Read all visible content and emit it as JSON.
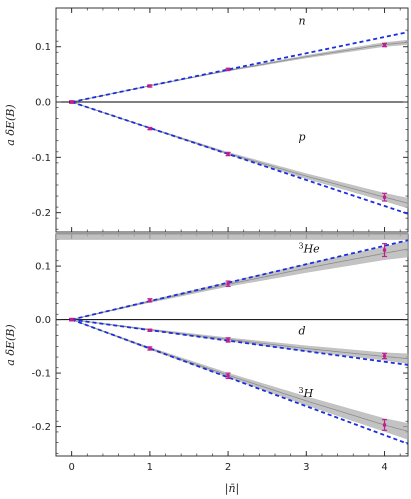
{
  "chart_data": [
    {
      "type": "line",
      "panel": "top",
      "xlim": [
        -0.2,
        4.3
      ],
      "ylim": [
        -0.235,
        0.17
      ],
      "yticks": [
        0.1,
        0.0,
        -0.1,
        -0.2
      ],
      "ytick_labels": [
        "0.1",
        "0.0",
        "-0.1",
        "-0.2"
      ],
      "xticks": [
        0,
        1,
        2,
        3,
        4
      ],
      "ylabel": "a δE(B)",
      "series": [
        {
          "name": "n",
          "label_pos": [
            2.9,
            0.14
          ],
          "color": "#1a2ee0",
          "linear_slope": 0.0294,
          "band_color": "#b4b4b4",
          "points": [
            {
              "x": 0,
              "y": 0.0,
              "err": 0.002
            },
            {
              "x": 1,
              "y": 0.029,
              "err": 0.002
            },
            {
              "x": 2,
              "y": 0.059,
              "err": 0.002
            },
            {
              "x": 4,
              "y": 0.103,
              "err": 0.003
            }
          ],
          "fit_curve": [
            [
              0,
              0
            ],
            [
              1,
              0.0294
            ],
            [
              2,
              0.057
            ],
            [
              3,
              0.082
            ],
            [
              4,
              0.104
            ],
            [
              4.3,
              0.108
            ]
          ],
          "band_halfwidth": [
            [
              0,
              0
            ],
            [
              2,
              0.001
            ],
            [
              4.3,
              0.004
            ]
          ]
        },
        {
          "name": "p",
          "label_pos": [
            2.9,
            -0.07
          ],
          "color": "#1a2ee0",
          "linear_slope": -0.047,
          "band_color": "#b4b4b4",
          "points": [
            {
              "x": 0,
              "y": 0.0,
              "err": 0.002
            },
            {
              "x": 1,
              "y": -0.048,
              "err": 0.002
            },
            {
              "x": 2,
              "y": -0.094,
              "err": 0.003
            },
            {
              "x": 4,
              "y": -0.172,
              "err": 0.007
            }
          ],
          "fit_curve": [
            [
              0,
              0
            ],
            [
              1,
              -0.047
            ],
            [
              2,
              -0.093
            ],
            [
              3,
              -0.134
            ],
            [
              4,
              -0.172
            ],
            [
              4.3,
              -0.183
            ]
          ],
          "band_halfwidth": [
            [
              0,
              0
            ],
            [
              2,
              0.002
            ],
            [
              4,
              0.007
            ],
            [
              4.3,
              0.009
            ]
          ]
        }
      ]
    },
    {
      "type": "line",
      "panel": "bottom",
      "xlim": [
        -0.2,
        4.3
      ],
      "ylim": [
        -0.255,
        0.16
      ],
      "yticks": [
        0.1,
        0.0,
        -0.1,
        -0.2
      ],
      "ytick_labels": [
        "0.1",
        "0.0",
        "-0.1",
        "-0.2"
      ],
      "xticks": [
        0,
        1,
        2,
        3,
        4
      ],
      "xtick_labels": [
        "0",
        "1",
        "2",
        "3",
        "4"
      ],
      "xlabel": "|n̄|",
      "ylabel": "a δE(B)",
      "series": [
        {
          "name": "3He",
          "label_pos": [
            2.9,
            0.125
          ],
          "color": "#1a2ee0",
          "linear_slope": 0.0345,
          "points": [
            {
              "x": 0,
              "y": 0.0,
              "err": 0.002
            },
            {
              "x": 1,
              "y": 0.036,
              "err": 0.003
            },
            {
              "x": 2,
              "y": 0.067,
              "err": 0.005
            },
            {
              "x": 4,
              "y": 0.13,
              "err": 0.012
            }
          ],
          "fit_curve": [
            [
              0,
              0
            ],
            [
              1,
              0.034
            ],
            [
              2,
              0.066
            ],
            [
              3,
              0.096
            ],
            [
              4,
              0.124
            ],
            [
              4.3,
              0.132
            ]
          ],
          "band_halfwidth": [
            [
              0,
              0
            ],
            [
              2,
              0.004
            ],
            [
              4,
              0.012
            ],
            [
              4.3,
              0.015
            ]
          ]
        },
        {
          "name": "d",
          "label_pos": [
            2.9,
            -0.028
          ],
          "color": "#1a2ee0",
          "linear_slope": -0.0197,
          "points": [
            {
              "x": 0,
              "y": 0.0,
              "err": 0.002
            },
            {
              "x": 1,
              "y": -0.02,
              "err": 0.002
            },
            {
              "x": 2,
              "y": -0.038,
              "err": 0.004
            },
            {
              "x": 4,
              "y": -0.068,
              "err": 0.005
            }
          ],
          "fit_curve": [
            [
              0,
              0
            ],
            [
              1,
              -0.019
            ],
            [
              2,
              -0.037
            ],
            [
              3,
              -0.054
            ],
            [
              4,
              -0.069
            ],
            [
              4.3,
              -0.073
            ]
          ],
          "band_halfwidth": [
            [
              0,
              0
            ],
            [
              2,
              0.003
            ],
            [
              4,
              0.007
            ],
            [
              4.3,
              0.009
            ]
          ]
        },
        {
          "name": "3H",
          "label_pos": [
            2.9,
            -0.145
          ],
          "color": "#1a2ee0",
          "linear_slope": -0.054,
          "points": [
            {
              "x": 0,
              "y": 0.0,
              "err": 0.002
            },
            {
              "x": 1,
              "y": -0.054,
              "err": 0.003
            },
            {
              "x": 2,
              "y": -0.105,
              "err": 0.005
            },
            {
              "x": 4,
              "y": -0.197,
              "err": 0.01
            }
          ],
          "fit_curve": [
            [
              0,
              0
            ],
            [
              1,
              -0.054
            ],
            [
              2,
              -0.104
            ],
            [
              3,
              -0.152
            ],
            [
              4,
              -0.197
            ],
            [
              4.3,
              -0.209
            ]
          ],
          "band_halfwidth": [
            [
              0,
              0
            ],
            [
              2,
              0.004
            ],
            [
              4,
              0.012
            ],
            [
              4.3,
              0.015
            ]
          ]
        }
      ],
      "top_band": {
        "y": 0.155,
        "halfwidth": 0.006
      }
    }
  ],
  "colors": {
    "dashed_line": "#1a2ee0",
    "points": "#c0208f",
    "band": "#b0b0b0",
    "zero_line": "#000000",
    "frame": "#333333"
  }
}
